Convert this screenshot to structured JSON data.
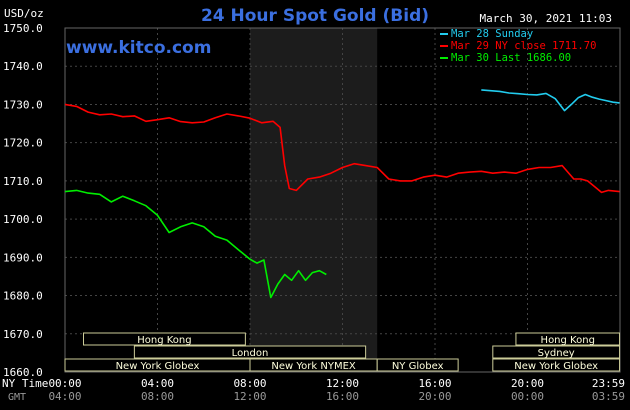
{
  "header": {
    "title": "24 Hour Spot Gold (Bid)",
    "timestamp": "March 30, 2021 11:03",
    "website": "www.kitco.com",
    "unit": "USD/oz"
  },
  "chart_data": {
    "type": "line",
    "ylim": [
      1660,
      1750
    ],
    "yticks": [
      "1750.0",
      "1740.0",
      "1730.0",
      "1720.0",
      "1710.0",
      "1700.0",
      "1690.0",
      "1680.0",
      "1670.0",
      "1660.0"
    ],
    "x_labels_ny": [
      "00:00",
      "04:00",
      "08:00",
      "12:00",
      "16:00",
      "20:00",
      "23:59"
    ],
    "x_labels_gmt": [
      "04:00",
      "08:00",
      "12:00",
      "16:00",
      "20:00",
      "00:00",
      "03:59"
    ],
    "ny_time_label": "NY Time",
    "gmt_label": "GMT",
    "legend": [
      {
        "label": "Mar 28 Sunday",
        "color": "#22ccee"
      },
      {
        "label": "Mar 29 NY close 1711.70",
        "color": "#ff0000"
      },
      {
        "label": "Mar 30 Last 1686.00",
        "color": "#00ee00"
      }
    ],
    "series": [
      {
        "name": "Mar 28 Sunday",
        "color": "#22ccee",
        "x": [
          18.0,
          18.4,
          18.8,
          19.2,
          19.6,
          20.0,
          20.4,
          20.8,
          21.2,
          21.6,
          21.9,
          22.2,
          22.5,
          22.8,
          23.1,
          23.4,
          23.7,
          23.98
        ],
        "y": [
          1733.8,
          1733.6,
          1733.4,
          1733.0,
          1732.8,
          1732.6,
          1732.5,
          1732.9,
          1731.5,
          1728.4,
          1730.0,
          1731.8,
          1732.6,
          1731.9,
          1731.4,
          1731.0,
          1730.6,
          1730.4
        ]
      },
      {
        "name": "Mar 29 NY close 1711.70",
        "color": "#ff0000",
        "x": [
          0.0,
          0.5,
          1.0,
          1.5,
          2.0,
          2.5,
          3.0,
          3.5,
          4.0,
          4.5,
          5.0,
          5.5,
          6.0,
          6.5,
          7.0,
          7.5,
          8.0,
          8.5,
          9.0,
          9.3,
          9.5,
          9.7,
          10.0,
          10.5,
          11.0,
          11.5,
          12.0,
          12.5,
          13.0,
          13.5,
          14.0,
          14.5,
          15.0,
          15.5,
          16.0,
          16.5,
          17.0,
          17.5,
          18.0,
          18.5,
          19.0,
          19.5,
          20.0,
          20.5,
          21.0,
          21.5,
          22.0,
          22.3,
          22.6,
          22.9,
          23.2,
          23.5,
          23.98
        ],
        "y": [
          1730.0,
          1729.5,
          1728.0,
          1727.3,
          1727.5,
          1726.8,
          1727.0,
          1725.6,
          1726.0,
          1726.5,
          1725.5,
          1725.2,
          1725.4,
          1726.5,
          1727.5,
          1727.0,
          1726.4,
          1725.2,
          1725.6,
          1724.0,
          1714.0,
          1708.0,
          1707.5,
          1710.5,
          1711.0,
          1712.0,
          1713.5,
          1714.5,
          1714.0,
          1713.5,
          1710.5,
          1710.0,
          1710.0,
          1711.0,
          1711.5,
          1711.0,
          1712.0,
          1712.3,
          1712.5,
          1712.0,
          1712.3,
          1712.0,
          1713.0,
          1713.5,
          1713.5,
          1714.0,
          1710.5,
          1710.5,
          1710.0,
          1708.5,
          1707.0,
          1707.5,
          1707.2
        ]
      },
      {
        "name": "Mar 30 Last 1686.00",
        "color": "#00ee00",
        "x": [
          0.0,
          0.5,
          1.0,
          1.5,
          2.0,
          2.5,
          3.0,
          3.5,
          4.0,
          4.5,
          5.0,
          5.5,
          6.0,
          6.5,
          7.0,
          7.5,
          8.0,
          8.3,
          8.6,
          8.9,
          9.2,
          9.5,
          9.8,
          10.1,
          10.4,
          10.7,
          11.0,
          11.3
        ],
        "y": [
          1707.2,
          1707.5,
          1706.8,
          1706.5,
          1704.5,
          1706.0,
          1704.8,
          1703.5,
          1701.0,
          1696.5,
          1698.0,
          1699.0,
          1698.0,
          1695.5,
          1694.5,
          1692.0,
          1689.5,
          1688.5,
          1689.3,
          1679.5,
          1683.0,
          1685.5,
          1684.0,
          1686.5,
          1684.0,
          1686.0,
          1686.5,
          1685.5
        ]
      }
    ],
    "sessions": [
      {
        "label": "Hong Kong",
        "start": 0.8,
        "end": 7.8,
        "row": 0
      },
      {
        "label": "Hong Kong",
        "start": 19.5,
        "end": 23.98,
        "row": 0
      },
      {
        "label": "London",
        "start": 3.0,
        "end": 13.0,
        "row": 1
      },
      {
        "label": "Sydney",
        "start": 18.5,
        "end": 23.98,
        "row": 1
      },
      {
        "label": "New York Globex",
        "start": 0.0,
        "end": 8.0,
        "row": 2
      },
      {
        "label": "New York NYMEX",
        "start": 8.0,
        "end": 13.5,
        "row": 2
      },
      {
        "label": "NY Globex",
        "start": 13.5,
        "end": 17.0,
        "row": 2
      },
      {
        "label": "New York Globex",
        "start": 18.5,
        "end": 23.98,
        "row": 2
      }
    ]
  }
}
